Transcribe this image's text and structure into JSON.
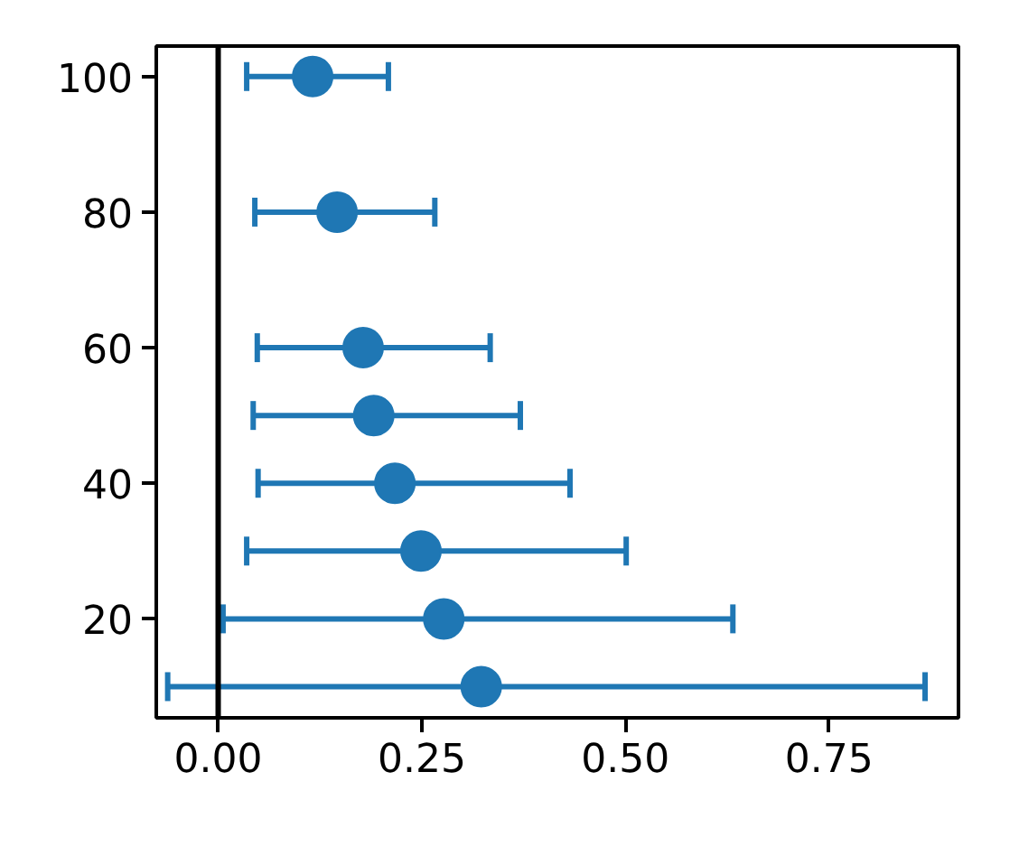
{
  "chart_data": {
    "type": "scatter",
    "marker": "circle",
    "color": "#1f77b4",
    "x": [
      0.116,
      0.146,
      0.178,
      0.191,
      0.217,
      0.249,
      0.277,
      0.323
    ],
    "values": [
      100,
      80,
      60,
      50,
      40,
      30,
      20,
      10
    ],
    "xerrors": [
      [
        0.035,
        0.209
      ],
      [
        0.045,
        0.266
      ],
      [
        0.048,
        0.334
      ],
      [
        0.043,
        0.371
      ],
      [
        0.049,
        0.432
      ],
      [
        0.035,
        0.501
      ],
      [
        0.006,
        0.632
      ],
      [
        -0.062,
        0.868
      ]
    ],
    "xlim": [
      -0.076,
      0.909
    ],
    "ylim": [
      5.4,
      104.5
    ],
    "xticks": [
      {
        "value": 0,
        "label": "0.00"
      },
      {
        "value": 0.25,
        "label": "0.25"
      },
      {
        "value": 0.5,
        "label": "0.50"
      },
      {
        "value": 0.75,
        "label": "0.75"
      }
    ],
    "yticks": [
      20,
      40,
      60,
      80,
      100
    ],
    "ref_lines": [
      {
        "axis": "x",
        "value": 0,
        "label": null,
        "color": "#000000"
      }
    ],
    "grid": false
  }
}
